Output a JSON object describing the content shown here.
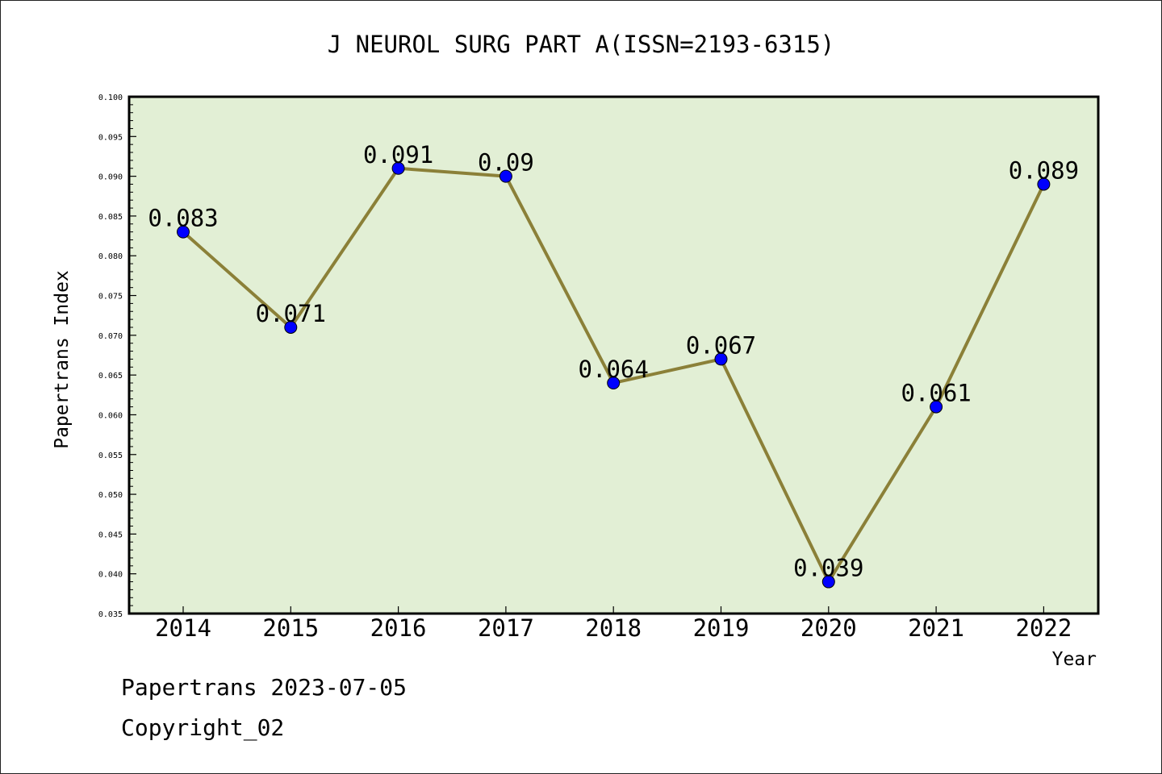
{
  "chart_data": {
    "type": "line",
    "title": "J NEUROL SURG PART A(ISSN=2193-6315)",
    "xlabel": "Year",
    "ylabel": "Papertrans Index",
    "categories": [
      "2014",
      "2015",
      "2016",
      "2017",
      "2018",
      "2019",
      "2020",
      "2021",
      "2022"
    ],
    "series": [
      {
        "values": [
          0.083,
          0.071,
          0.091,
          0.09,
          0.064,
          0.067,
          0.039,
          0.061,
          0.089
        ]
      }
    ],
    "data_labels": [
      "0.083",
      "0.071",
      "0.091",
      "0.09",
      "0.064",
      "0.067",
      "0.039",
      "0.061",
      "0.089"
    ],
    "ylim": [
      0.035,
      0.1
    ],
    "yticks": [
      "0.035",
      "0.040",
      "0.045",
      "0.050",
      "0.055",
      "0.060",
      "0.065",
      "0.070",
      "0.075",
      "0.080",
      "0.085",
      "0.090",
      "0.095",
      "0.100"
    ],
    "grid": false,
    "colors": {
      "line": "#8b8038",
      "marker": "#0000ff",
      "plot_bg": "#e2efd5"
    }
  },
  "footer": {
    "source": "Papertrans 2023-07-05",
    "copyright": "Copyright_02"
  }
}
